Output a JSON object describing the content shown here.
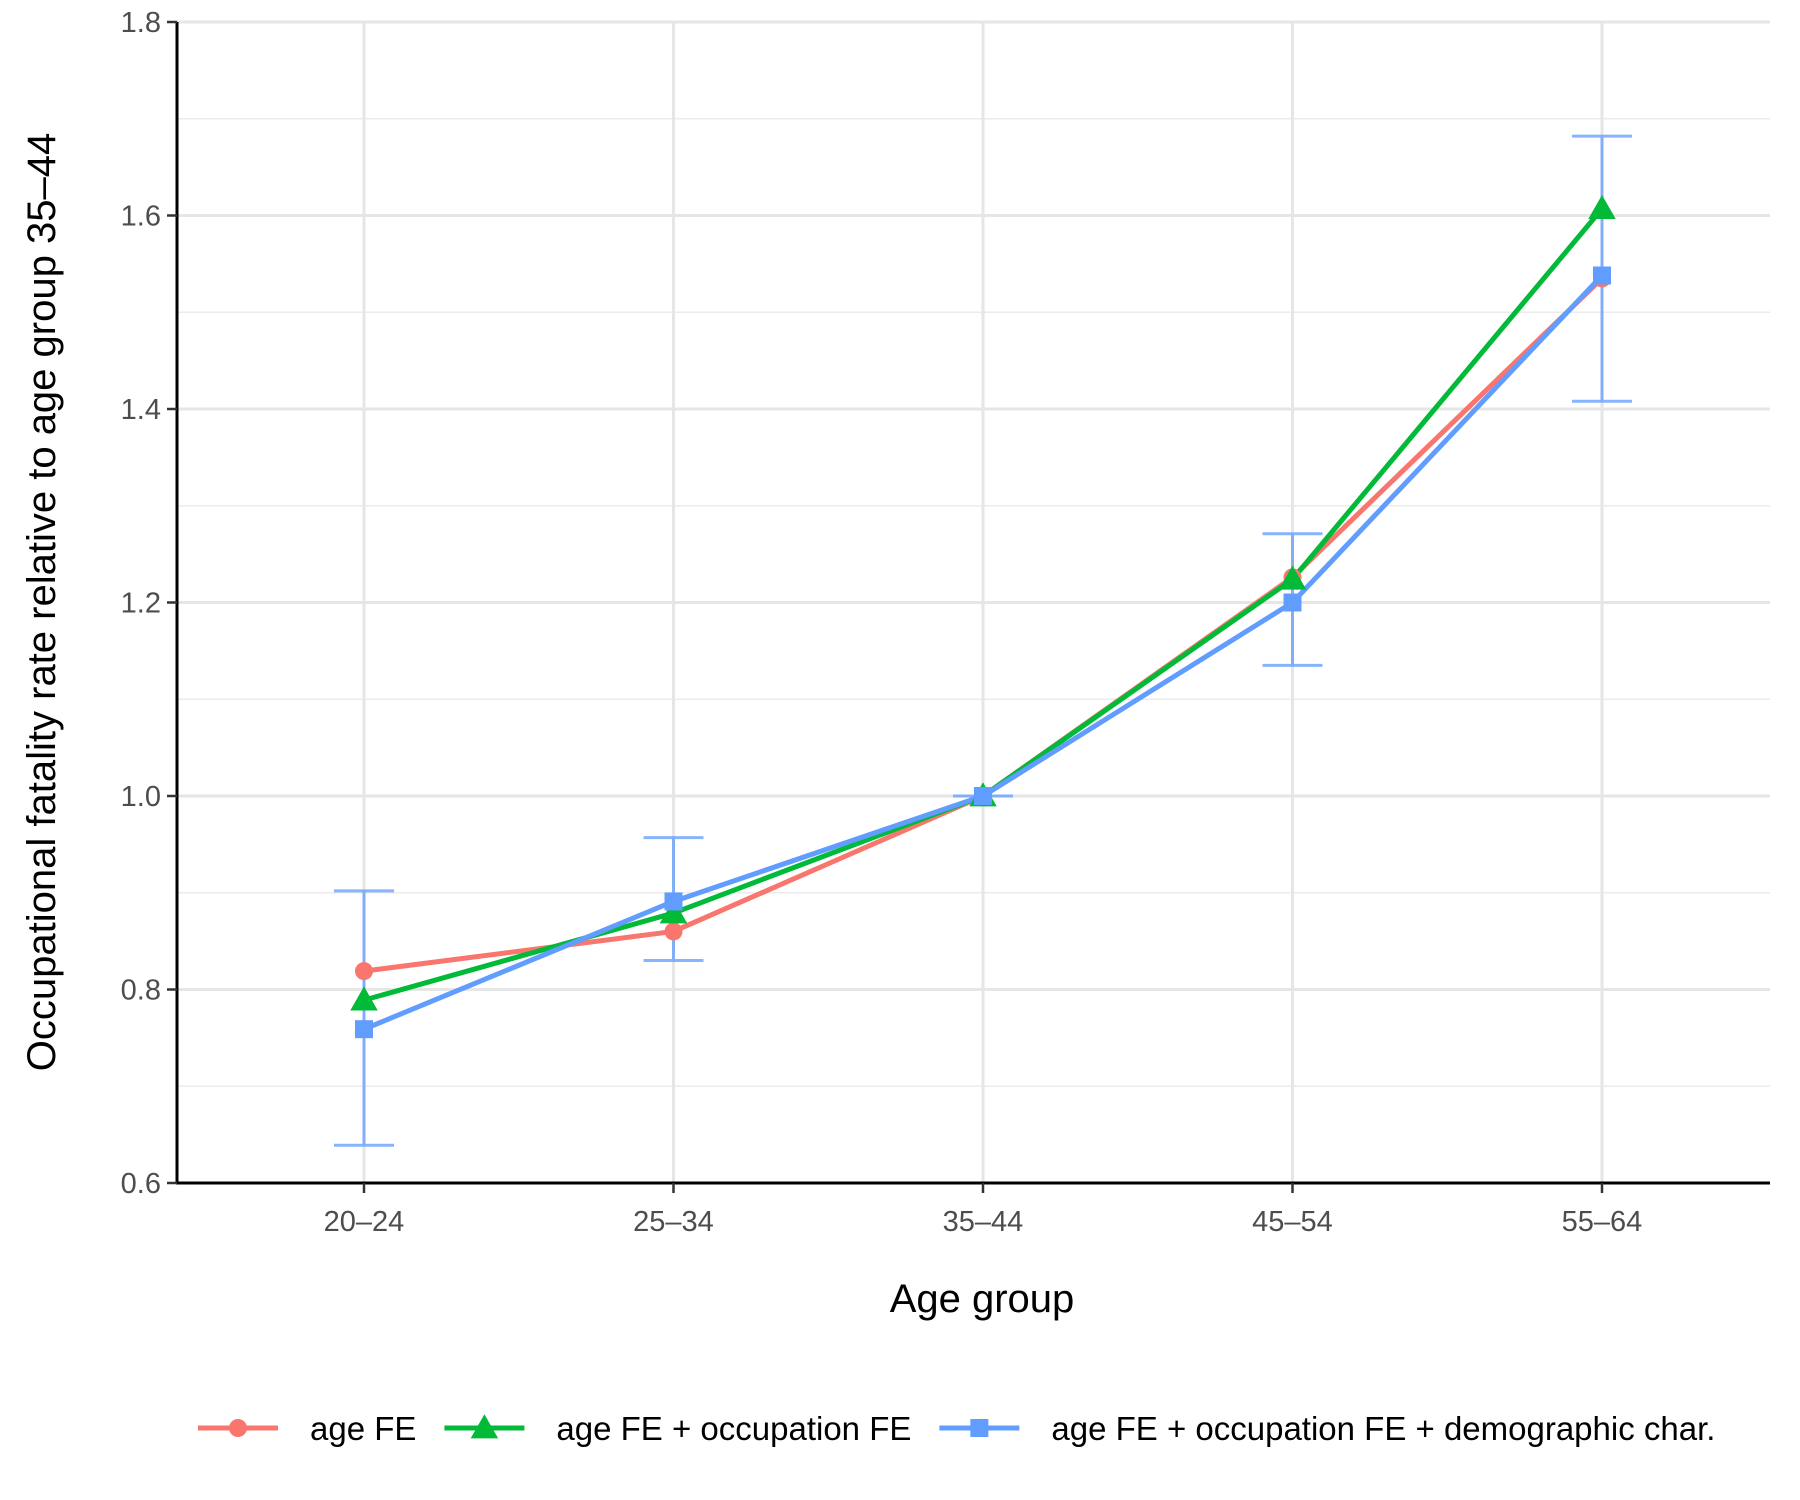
{
  "chart_data": {
    "type": "line",
    "xlabel": "Age group",
    "ylabel": "Occupational fatality rate relative to age group 35–44",
    "categories": [
      "20–24",
      "25–34",
      "35–44",
      "45–54",
      "55–64"
    ],
    "ylim": [
      0.6,
      1.8
    ],
    "yticks": [
      "0.6",
      "0.8",
      "1.0",
      "1.2",
      "1.4",
      "1.6",
      "1.8"
    ],
    "grid": true,
    "legend_position": "bottom",
    "series": [
      {
        "name": "age FE",
        "marker": "circle",
        "color": "#F8766D",
        "values": [
          0.819,
          0.86,
          1.0,
          1.226,
          1.535
        ]
      },
      {
        "name": "age FE + occupation FE",
        "marker": "triangle",
        "color": "#00BA38",
        "values": [
          0.789,
          0.879,
          1.0,
          1.224,
          1.607
        ]
      },
      {
        "name": "age FE + occupation FE + demographic char.",
        "marker": "square",
        "color": "#619CFF",
        "values": [
          0.759,
          0.891,
          1.0,
          1.2,
          1.538
        ],
        "error_low": [
          0.639,
          0.83,
          1.0,
          1.135,
          1.408
        ],
        "error_high": [
          0.902,
          0.957,
          1.0,
          1.271,
          1.682
        ]
      }
    ]
  }
}
